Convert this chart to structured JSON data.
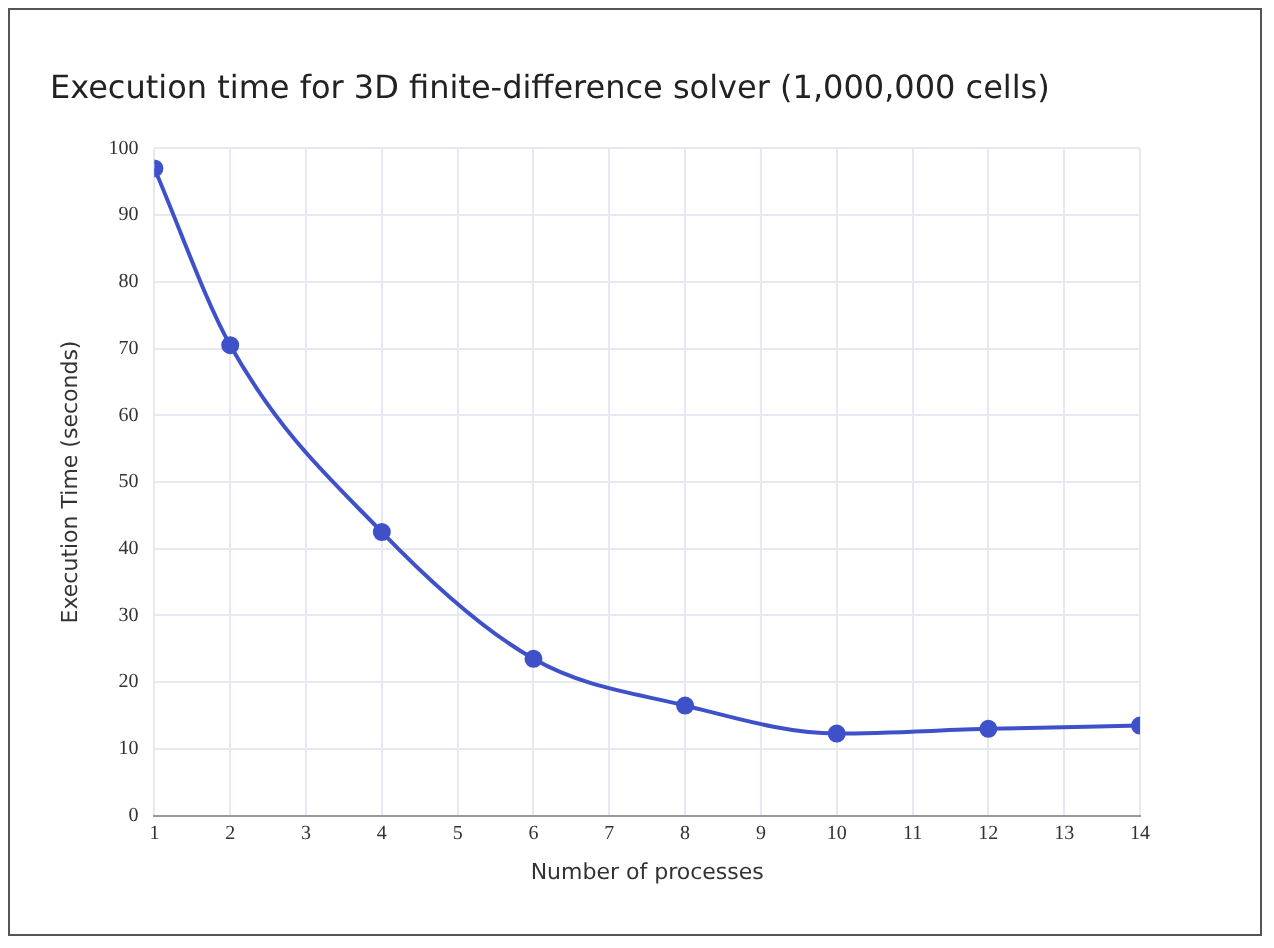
{
  "chart_data": {
    "type": "line",
    "title": "Execution time for 3D finite-difference solver (1,000,000 cells)",
    "xlabel": "Number of processes",
    "ylabel": "Execution Time (seconds)",
    "x": [
      1,
      2,
      4,
      6,
      8,
      10,
      12,
      14
    ],
    "series": [
      {
        "color": "#3f51c8",
        "values": [
          97,
          70.5,
          42.5,
          23.5,
          16.5,
          12.3,
          13,
          13.5
        ]
      }
    ],
    "xlim": [
      1,
      14
    ],
    "xticks": [
      1,
      2,
      3,
      4,
      5,
      6,
      7,
      8,
      9,
      10,
      11,
      12,
      13,
      14
    ],
    "ylim": [
      0,
      100
    ],
    "yticks": [
      0,
      10,
      20,
      30,
      40,
      50,
      60,
      70,
      80,
      90,
      100
    ],
    "grid": true,
    "legend": false,
    "marker": "circle",
    "line_style": "solid"
  }
}
